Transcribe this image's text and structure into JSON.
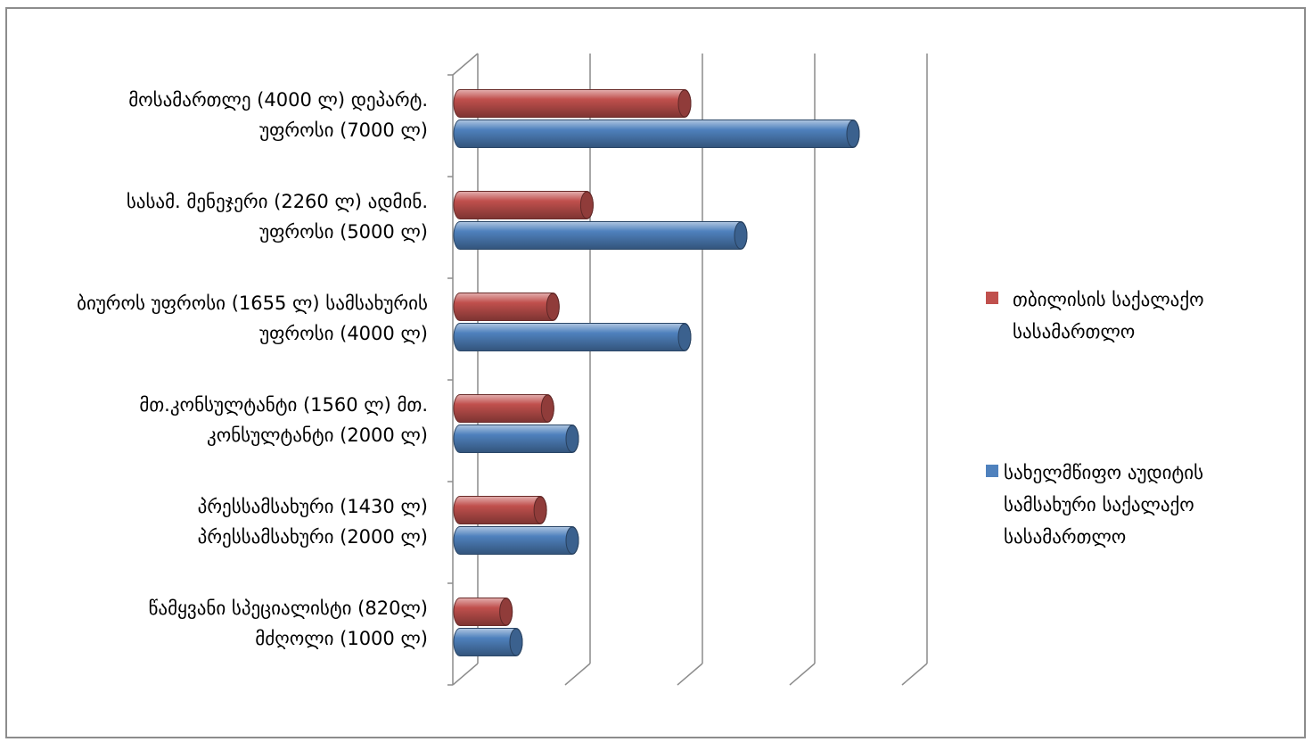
{
  "chart_data": {
    "type": "bar",
    "orientation": "horizontal",
    "style": "3d-cylinder",
    "categories": [
      [
        "მოსამართლე (4000 ლ) დეპარტ.",
        "უფროსი (7000 ლ)"
      ],
      [
        "სასამ. მენეჯერი (2260 ლ)   ადმინ.",
        "უფროსი (5000 ლ)"
      ],
      [
        "ბიუროს უფროსი (1655 ლ) სამსახურის",
        "უფროსი (4000 ლ)"
      ],
      [
        "მთ.კონსულტანტი (1560 ლ)  მთ.",
        "კონსულტანტი (2000 ლ)"
      ],
      [
        "პრესსამსახური (1430 ლ)",
        "პრესსამსახური (2000 ლ)"
      ],
      [
        "წამყვანი სპეციალისტი (820ლ)",
        "მძღოლი (1000 ლ)"
      ]
    ],
    "series": [
      {
        "name": "თბილისის საქალაქო\nსასამართლო",
        "color": "#c0504d",
        "values": [
          4000,
          2260,
          1655,
          1560,
          1430,
          820
        ]
      },
      {
        "name": "სახელმწიფო აუდიტის\nსამსახური საქალაქო\nსასამართლო",
        "color": "#4f81bd",
        "values": [
          7000,
          5000,
          4000,
          2000,
          2000,
          1000
        ]
      }
    ],
    "xlim": [
      0,
      8000
    ],
    "gridline_step": 2000,
    "tick_labels_visible": false,
    "grid": true,
    "legend_position": "right"
  }
}
